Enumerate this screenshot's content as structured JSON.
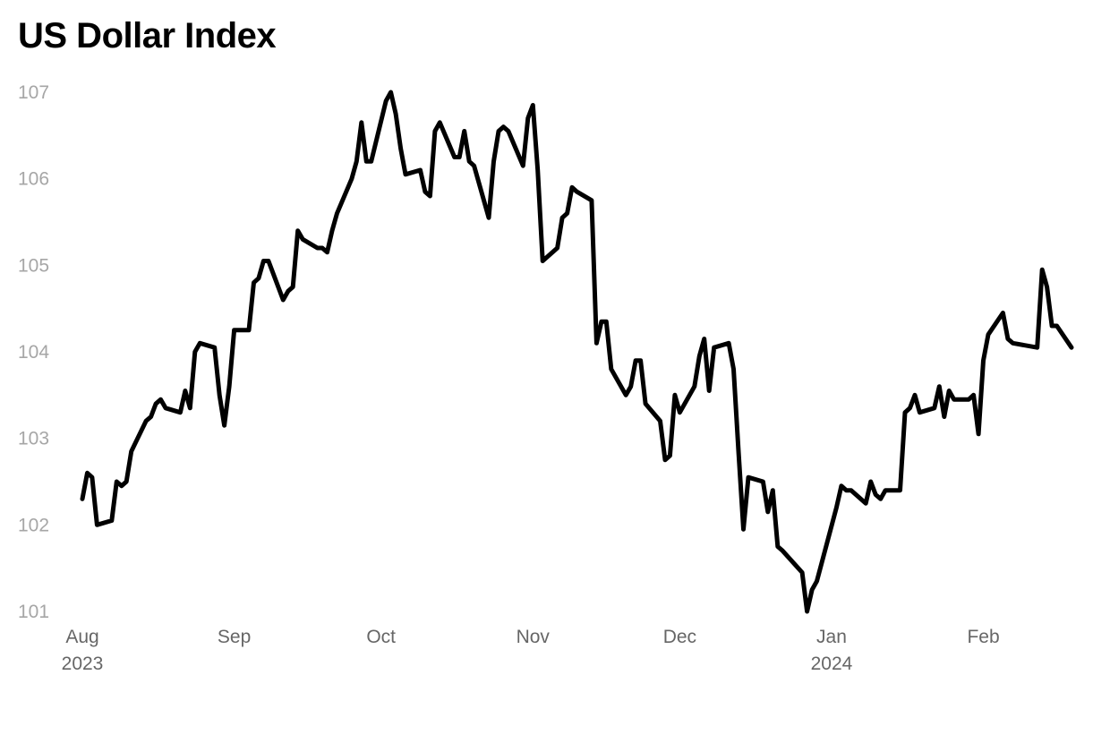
{
  "chart_data": {
    "type": "line",
    "title": "US Dollar Index",
    "xlabel": "",
    "ylabel": "",
    "ylim": [
      101,
      107
    ],
    "yticks": [
      101,
      102,
      103,
      104,
      105,
      106,
      107
    ],
    "xlim": [
      "2023-08-01",
      "2024-02-19"
    ],
    "xticks": [
      {
        "date": "2023-08-01",
        "label": "Aug",
        "sublabel": "2023"
      },
      {
        "date": "2023-09-01",
        "label": "Sep",
        "sublabel": ""
      },
      {
        "date": "2023-10-01",
        "label": "Oct",
        "sublabel": ""
      },
      {
        "date": "2023-11-01",
        "label": "Nov",
        "sublabel": ""
      },
      {
        "date": "2023-12-01",
        "label": "Dec",
        "sublabel": ""
      },
      {
        "date": "2024-01-01",
        "label": "Jan",
        "sublabel": "2024"
      },
      {
        "date": "2024-02-01",
        "label": "Feb",
        "sublabel": ""
      }
    ],
    "grid": false,
    "legend": "none",
    "series": [
      {
        "color": "#000000",
        "points": [
          [
            "2023-08-01",
            102.3
          ],
          [
            "2023-08-02",
            102.6
          ],
          [
            "2023-08-03",
            102.55
          ],
          [
            "2023-08-04",
            102.0
          ],
          [
            "2023-08-07",
            102.05
          ],
          [
            "2023-08-08",
            102.5
          ],
          [
            "2023-08-09",
            102.45
          ],
          [
            "2023-08-10",
            102.5
          ],
          [
            "2023-08-11",
            102.85
          ],
          [
            "2023-08-14",
            103.2
          ],
          [
            "2023-08-15",
            103.25
          ],
          [
            "2023-08-16",
            103.4
          ],
          [
            "2023-08-17",
            103.45
          ],
          [
            "2023-08-18",
            103.35
          ],
          [
            "2023-08-21",
            103.3
          ],
          [
            "2023-08-22",
            103.55
          ],
          [
            "2023-08-23",
            103.35
          ],
          [
            "2023-08-24",
            104.0
          ],
          [
            "2023-08-25",
            104.1
          ],
          [
            "2023-08-28",
            104.05
          ],
          [
            "2023-08-29",
            103.5
          ],
          [
            "2023-08-30",
            103.15
          ],
          [
            "2023-08-31",
            103.6
          ],
          [
            "2023-09-01",
            104.25
          ],
          [
            "2023-09-04",
            104.25
          ],
          [
            "2023-09-05",
            104.8
          ],
          [
            "2023-09-06",
            104.85
          ],
          [
            "2023-09-07",
            105.05
          ],
          [
            "2023-09-08",
            105.05
          ],
          [
            "2023-09-11",
            104.6
          ],
          [
            "2023-09-12",
            104.7
          ],
          [
            "2023-09-13",
            104.75
          ],
          [
            "2023-09-14",
            105.4
          ],
          [
            "2023-09-15",
            105.3
          ],
          [
            "2023-09-18",
            105.2
          ],
          [
            "2023-09-19",
            105.2
          ],
          [
            "2023-09-20",
            105.15
          ],
          [
            "2023-09-21",
            105.4
          ],
          [
            "2023-09-22",
            105.6
          ],
          [
            "2023-09-25",
            106.0
          ],
          [
            "2023-09-26",
            106.2
          ],
          [
            "2023-09-27",
            106.65
          ],
          [
            "2023-09-28",
            106.2
          ],
          [
            "2023-09-29",
            106.2
          ],
          [
            "2023-10-02",
            106.9
          ],
          [
            "2023-10-03",
            107.0
          ],
          [
            "2023-10-04",
            106.75
          ],
          [
            "2023-10-05",
            106.35
          ],
          [
            "2023-10-06",
            106.05
          ],
          [
            "2023-10-09",
            106.1
          ],
          [
            "2023-10-10",
            105.85
          ],
          [
            "2023-10-11",
            105.8
          ],
          [
            "2023-10-12",
            106.55
          ],
          [
            "2023-10-13",
            106.65
          ],
          [
            "2023-10-16",
            106.25
          ],
          [
            "2023-10-17",
            106.25
          ],
          [
            "2023-10-18",
            106.55
          ],
          [
            "2023-10-19",
            106.2
          ],
          [
            "2023-10-20",
            106.15
          ],
          [
            "2023-10-23",
            105.55
          ],
          [
            "2023-10-24",
            106.2
          ],
          [
            "2023-10-25",
            106.55
          ],
          [
            "2023-10-26",
            106.6
          ],
          [
            "2023-10-27",
            106.55
          ],
          [
            "2023-10-30",
            106.15
          ],
          [
            "2023-10-31",
            106.7
          ],
          [
            "2023-11-01",
            106.85
          ],
          [
            "2023-11-02",
            106.1
          ],
          [
            "2023-11-03",
            105.05
          ],
          [
            "2023-11-06",
            105.2
          ],
          [
            "2023-11-07",
            105.55
          ],
          [
            "2023-11-08",
            105.6
          ],
          [
            "2023-11-09",
            105.9
          ],
          [
            "2023-11-10",
            105.85
          ],
          [
            "2023-11-13",
            105.75
          ],
          [
            "2023-11-14",
            104.1
          ],
          [
            "2023-11-15",
            104.35
          ],
          [
            "2023-11-16",
            104.35
          ],
          [
            "2023-11-17",
            103.8
          ],
          [
            "2023-11-20",
            103.5
          ],
          [
            "2023-11-21",
            103.6
          ],
          [
            "2023-11-22",
            103.9
          ],
          [
            "2023-11-23",
            103.9
          ],
          [
            "2023-11-24",
            103.4
          ],
          [
            "2023-11-27",
            103.2
          ],
          [
            "2023-11-28",
            102.75
          ],
          [
            "2023-11-29",
            102.8
          ],
          [
            "2023-11-30",
            103.5
          ],
          [
            "2023-12-01",
            103.3
          ],
          [
            "2023-12-04",
            103.6
          ],
          [
            "2023-12-05",
            103.95
          ],
          [
            "2023-12-06",
            104.15
          ],
          [
            "2023-12-07",
            103.55
          ],
          [
            "2023-12-08",
            104.05
          ],
          [
            "2023-12-11",
            104.1
          ],
          [
            "2023-12-12",
            103.8
          ],
          [
            "2023-12-13",
            102.85
          ],
          [
            "2023-12-14",
            101.95
          ],
          [
            "2023-12-15",
            102.55
          ],
          [
            "2023-12-18",
            102.5
          ],
          [
            "2023-12-19",
            102.15
          ],
          [
            "2023-12-20",
            102.4
          ],
          [
            "2023-12-21",
            101.75
          ],
          [
            "2023-12-22",
            101.7
          ],
          [
            "2023-12-26",
            101.45
          ],
          [
            "2023-12-27",
            101.0
          ],
          [
            "2023-12-28",
            101.25
          ],
          [
            "2023-12-29",
            101.35
          ],
          [
            "2024-01-02",
            102.2
          ],
          [
            "2024-01-03",
            102.45
          ],
          [
            "2024-01-04",
            102.4
          ],
          [
            "2024-01-05",
            102.4
          ],
          [
            "2024-01-08",
            102.25
          ],
          [
            "2024-01-09",
            102.5
          ],
          [
            "2024-01-10",
            102.35
          ],
          [
            "2024-01-11",
            102.3
          ],
          [
            "2024-01-12",
            102.4
          ],
          [
            "2024-01-15",
            102.4
          ],
          [
            "2024-01-16",
            103.3
          ],
          [
            "2024-01-17",
            103.35
          ],
          [
            "2024-01-18",
            103.5
          ],
          [
            "2024-01-19",
            103.3
          ],
          [
            "2024-01-22",
            103.35
          ],
          [
            "2024-01-23",
            103.6
          ],
          [
            "2024-01-24",
            103.25
          ],
          [
            "2024-01-25",
            103.55
          ],
          [
            "2024-01-26",
            103.45
          ],
          [
            "2024-01-29",
            103.45
          ],
          [
            "2024-01-30",
            103.5
          ],
          [
            "2024-01-31",
            103.05
          ],
          [
            "2024-02-01",
            103.9
          ],
          [
            "2024-02-02",
            104.2
          ],
          [
            "2024-02-05",
            104.45
          ],
          [
            "2024-02-06",
            104.15
          ],
          [
            "2024-02-07",
            104.1
          ],
          [
            "2024-02-12",
            104.05
          ],
          [
            "2024-02-13",
            104.95
          ],
          [
            "2024-02-14",
            104.75
          ],
          [
            "2024-02-15",
            104.3
          ],
          [
            "2024-02-16",
            104.3
          ],
          [
            "2024-02-19",
            104.05
          ]
        ]
      }
    ]
  }
}
